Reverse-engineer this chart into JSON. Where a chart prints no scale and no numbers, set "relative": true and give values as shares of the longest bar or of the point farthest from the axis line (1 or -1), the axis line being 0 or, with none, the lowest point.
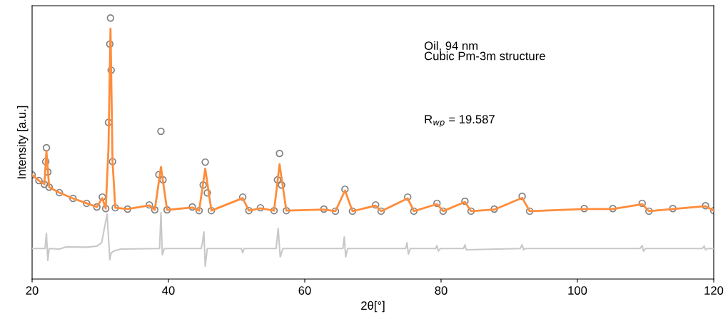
{
  "chart_data": {
    "type": "line",
    "relative": true,
    "xlabel": "2θ[°]",
    "ylabel": "Intensity [a.u.]",
    "xlim": [
      20,
      120
    ],
    "xticks": [
      20,
      40,
      60,
      80,
      100,
      120
    ],
    "grid": false,
    "legend": false,
    "annotations": [
      "Oil, 94 nm\nCubic Pm-3m structure",
      "R$_{wp}$ = 19.587"
    ],
    "series": [
      {
        "type": "scatter",
        "marker": "circle",
        "color": "#808080",
        "x": [
          20,
          21,
          21.8,
          22.0,
          22.1,
          22.3,
          22.5,
          24,
          26,
          28,
          29.5,
          30.3,
          30.8,
          31.2,
          31.4,
          31.5,
          31.6,
          31.8,
          32.2,
          34,
          37.2,
          38,
          38.6,
          38.9,
          39.2,
          39.8,
          43.5,
          44.5,
          45.1,
          45.4,
          45.7,
          46.3,
          50.9,
          51.8,
          53.5,
          55.5,
          56.0,
          56.3,
          56.6,
          57.3,
          62.8,
          64.5,
          65.9,
          67,
          70.4,
          71.2,
          75.1,
          76,
          79.4,
          80.3,
          83.5,
          84.4,
          87.8,
          91.9,
          93,
          101,
          105.2,
          109.5,
          110.5,
          114,
          118.8,
          120
        ],
        "values": [
          0.399,
          0.377,
          0.363,
          0.45,
          0.503,
          0.41,
          0.352,
          0.331,
          0.309,
          0.29,
          0.276,
          0.314,
          0.27,
          0.6,
          0.9,
          1.0,
          0.8,
          0.45,
          0.273,
          0.268,
          0.284,
          0.265,
          0.4,
          0.566,
          0.38,
          0.265,
          0.276,
          0.262,
          0.36,
          0.448,
          0.33,
          0.262,
          0.314,
          0.262,
          0.273,
          0.262,
          0.38,
          0.481,
          0.36,
          0.262,
          0.268,
          0.26,
          0.344,
          0.26,
          0.284,
          0.26,
          0.314,
          0.26,
          0.29,
          0.26,
          0.298,
          0.26,
          0.268,
          0.317,
          0.26,
          0.27,
          0.27,
          0.29,
          0.26,
          0.27,
          0.281,
          0.262
        ]
      },
      {
        "color": "#ff8c3a",
        "x": [
          20,
          21,
          21.8,
          22.1,
          22.5,
          24,
          26,
          28,
          29.5,
          30.3,
          30.8,
          31.2,
          31.5,
          31.8,
          32.2,
          34,
          37.2,
          38,
          38.9,
          39.8,
          43.5,
          44.5,
          45.4,
          46.3,
          50.9,
          51.8,
          53.5,
          55.5,
          56.3,
          57.3,
          62.8,
          64.5,
          65.9,
          67,
          70.4,
          71.2,
          75.1,
          76,
          79.4,
          80.3,
          83.5,
          84.4,
          87.8,
          91.9,
          93,
          101,
          105.2,
          109.5,
          110.5,
          114,
          118.8,
          120
        ],
        "values": [
          0.399,
          0.377,
          0.363,
          0.49,
          0.352,
          0.331,
          0.309,
          0.29,
          0.276,
          0.31,
          0.27,
          0.5,
          0.959,
          0.45,
          0.273,
          0.268,
          0.282,
          0.265,
          0.429,
          0.265,
          0.274,
          0.262,
          0.423,
          0.262,
          0.31,
          0.262,
          0.271,
          0.262,
          0.44,
          0.262,
          0.266,
          0.26,
          0.339,
          0.26,
          0.281,
          0.26,
          0.309,
          0.26,
          0.287,
          0.26,
          0.295,
          0.26,
          0.266,
          0.311,
          0.26,
          0.268,
          0.268,
          0.287,
          0.26,
          0.268,
          0.279,
          0.262
        ]
      },
      {
        "color": "#c8c8c8",
        "x": [
          20,
          21.9,
          22.1,
          22.3,
          22.5,
          24,
          25,
          28,
          29.5,
          30.2,
          31.0,
          31.4,
          31.6,
          32.0,
          33,
          38.7,
          38.9,
          39.1,
          39.4,
          44.8,
          45.0,
          45.2,
          45.4,
          45.7,
          50.7,
          50.9,
          51.1,
          55.8,
          56.1,
          56.4,
          56.8,
          65.6,
          65.8,
          66.0,
          66.3,
          74.8,
          75.0,
          75.2,
          75.5,
          79.2,
          79.4,
          79.6,
          79.9,
          83.3,
          83.5,
          83.7,
          91.6,
          91.9,
          92.1,
          92.4,
          109.2,
          109.5,
          109.7,
          110,
          118.3,
          118.6,
          118.8,
          119.1,
          120
        ],
        "values": [
          0.117,
          0.117,
          0.175,
          0.071,
          0.117,
          0.115,
          0.123,
          0.122,
          0.126,
          0.139,
          0.249,
          0.074,
          0.1,
          0.107,
          0.115,
          0.117,
          0.254,
          0.093,
          0.117,
          0.117,
          0.14,
          0.18,
          0.049,
          0.117,
          0.117,
          0.101,
          0.117,
          0.117,
          0.194,
          0.085,
          0.117,
          0.117,
          0.161,
          0.085,
          0.117,
          0.117,
          0.139,
          0.096,
          0.117,
          0.117,
          0.128,
          0.107,
          0.117,
          0.117,
          0.131,
          0.112,
          0.117,
          0.131,
          0.112,
          0.117,
          0.117,
          0.128,
          0.107,
          0.117,
          0.117,
          0.126,
          0.112,
          0.117,
          0.117
        ]
      }
    ]
  }
}
